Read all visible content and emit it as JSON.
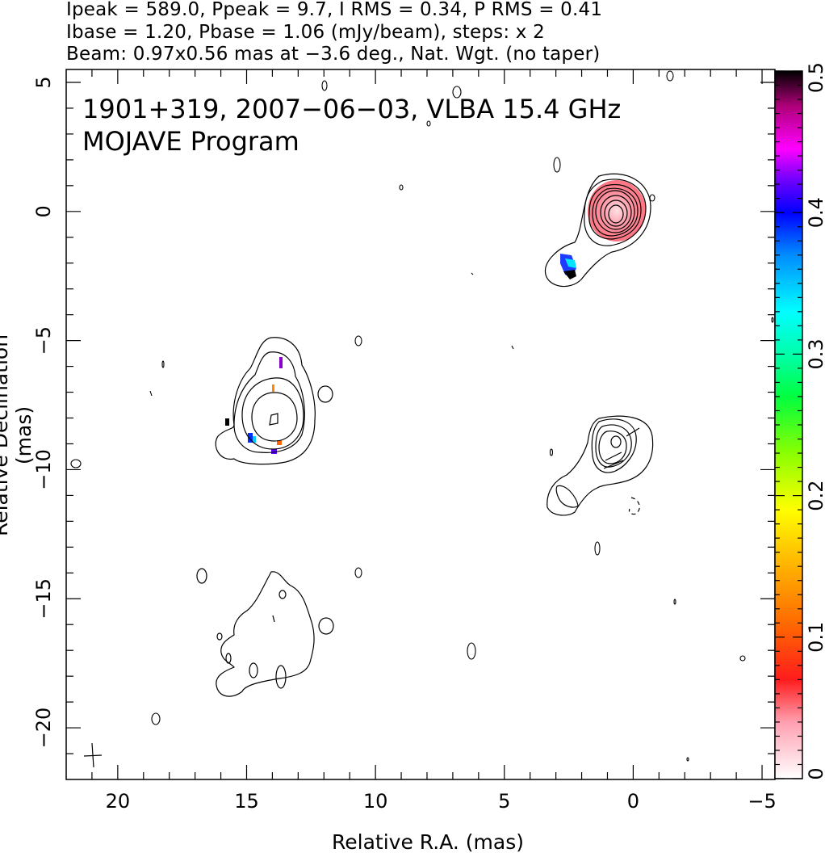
{
  "header": {
    "line1": "Ipeak = 589.0, Ppeak = 9.7, I RMS = 0.34, P RMS = 0.41",
    "line2": "Ibase = 1.20, Pbase = 1.06 (mJy/beam), steps: x 2",
    "line3": "Beam: 0.97x0.56 mas at −3.6 deg., Nat. Wgt. (no taper)"
  },
  "chart_data": {
    "type": "heatmap",
    "title": "1901+319, 2007−06−03, VLBA 15.4 GHz",
    "subtitle": "MOJAVE Program",
    "xlabel": "Relative R.A. (mas)",
    "ylabel": "Relative Declination (mas)",
    "xlim": [
      22,
      -5.5
    ],
    "ylim": [
      -22,
      5.5
    ],
    "x_ticks": [
      20,
      15,
      10,
      5,
      0,
      -5
    ],
    "x_tick_labels": [
      "20",
      "15",
      "10",
      "5",
      "0",
      "−5"
    ],
    "y_ticks": [
      5,
      0,
      -5,
      -10,
      -15,
      -20
    ],
    "y_tick_labels": [
      "5",
      "0",
      "−5",
      "−10",
      "−15",
      "−20"
    ],
    "colorbar": {
      "range": [
        0,
        0.5
      ],
      "ticks": [
        0,
        0.1,
        0.2,
        0.3,
        0.4,
        0.5
      ],
      "tick_labels": [
        "0",
        "0.1",
        "0.2",
        "0.3",
        "0.4",
        "0.5"
      ]
    },
    "components": [
      {
        "x": 0.6,
        "y": -0.3,
        "levels": 9
      },
      {
        "x": 13.7,
        "y": -8.0,
        "levels": 4
      },
      {
        "x": 0.8,
        "y": -9.2,
        "levels": 4
      },
      {
        "x": 14.0,
        "y": -17.0,
        "levels": 1
      }
    ]
  }
}
